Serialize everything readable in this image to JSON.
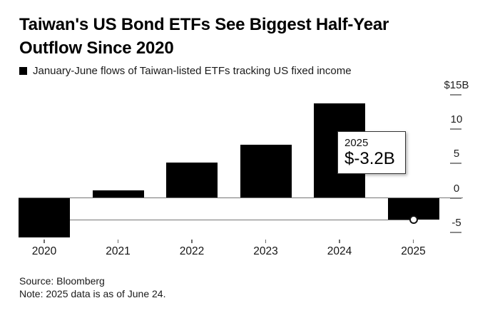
{
  "header": {
    "title_lines": [
      "Taiwan's US Bond ETFs See Biggest Half-Year",
      "Outflow Since 2020"
    ],
    "legend": {
      "marker": "black-square",
      "label": "January-June flows of Taiwan-listed ETFs tracking US fixed income"
    }
  },
  "chart_data": {
    "type": "bar",
    "title": "Taiwan's US Bond ETFs See Biggest Half-Year Outflow Since 2020",
    "subtitle": "January-June flows of Taiwan-listed ETFs tracking US fixed income",
    "categories": [
      "2020",
      "2021",
      "2022",
      "2023",
      "2024",
      "2025"
    ],
    "values": [
      -5.8,
      1.1,
      5.1,
      7.7,
      13.7,
      -3.2
    ],
    "unit": "billions of US dollars",
    "ylim": [
      -7,
      15.5
    ],
    "grid": false,
    "legend_position": "top-left",
    "y_ticks": [
      {
        "label": "$15B",
        "value": 15
      },
      {
        "label": "10",
        "value": 10
      },
      {
        "label": "5",
        "value": 5
      },
      {
        "label": "0",
        "value": 0
      },
      {
        "label": "-5",
        "value": -5
      }
    ],
    "tooltip": {
      "category": "2025",
      "value_label": "$-3.2B",
      "value": -3.2
    },
    "hover_marker": {
      "category": "2025",
      "value": -3.2
    },
    "highlight_line_value": -3.2
  },
  "footer": {
    "source": "Source: Bloomberg",
    "note": "Note: 2025 data is as of June 24."
  },
  "colors": {
    "bar": "#000000",
    "axis_line": "#757575",
    "tick": "#6b6b6b",
    "y_tick_dash": "#8a8a8a",
    "text": "#1a1a1a",
    "background": "#ffffff"
  }
}
